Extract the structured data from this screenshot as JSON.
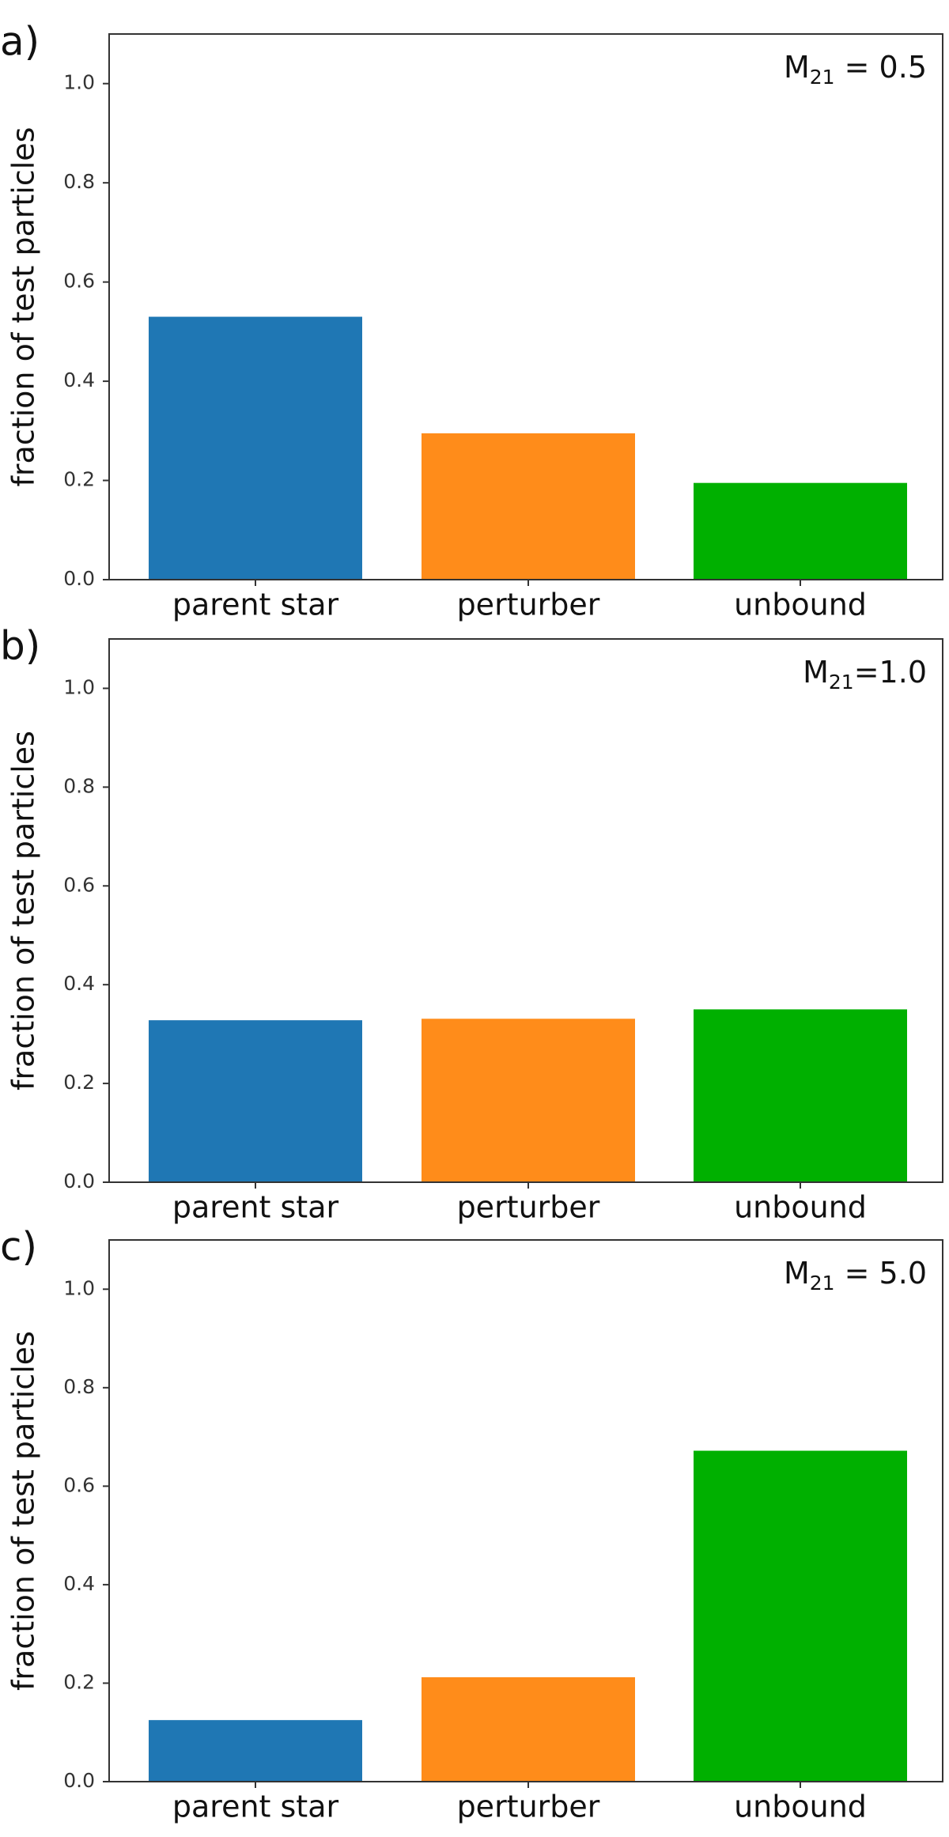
{
  "chart_data": [
    {
      "type": "bar",
      "panel_label": "a)",
      "annotation": {
        "main": "M",
        "sub": "21",
        "rest": " = 0.5"
      },
      "categories": [
        "parent star",
        "perturber",
        "unbound"
      ],
      "values": [
        0.53,
        0.295,
        0.195
      ],
      "colors": [
        "#1f77b4",
        "#ff8c1a",
        "#00b000"
      ],
      "ylabel": "fraction of test particles",
      "ylim": [
        0,
        1.1
      ],
      "yticks": [
        "0.0",
        "0.2",
        "0.4",
        "0.6",
        "0.8",
        "1.0"
      ],
      "grid": false
    },
    {
      "type": "bar",
      "panel_label": "b)",
      "annotation": {
        "main": "M",
        "sub": "21",
        "rest": "=1.0"
      },
      "categories": [
        "parent star",
        "perturber",
        "unbound"
      ],
      "values": [
        0.328,
        0.331,
        0.35
      ],
      "colors": [
        "#1f77b4",
        "#ff8c1a",
        "#00b000"
      ],
      "ylabel": "fraction of test particles",
      "ylim": [
        0,
        1.1
      ],
      "yticks": [
        "0.0",
        "0.2",
        "0.4",
        "0.6",
        "0.8",
        "1.0"
      ],
      "grid": false
    },
    {
      "type": "bar",
      "panel_label": "c)",
      "annotation": {
        "main": "M",
        "sub": "21",
        "rest": " = 5.0"
      },
      "categories": [
        "parent star",
        "perturber",
        "unbound"
      ],
      "values": [
        0.125,
        0.212,
        0.672
      ],
      "colors": [
        "#1f77b4",
        "#ff8c1a",
        "#00b000"
      ],
      "ylabel": "fraction of test particles",
      "ylim": [
        0,
        1.1
      ],
      "yticks": [
        "0.0",
        "0.2",
        "0.4",
        "0.6",
        "0.8",
        "1.0"
      ],
      "grid": false
    }
  ]
}
